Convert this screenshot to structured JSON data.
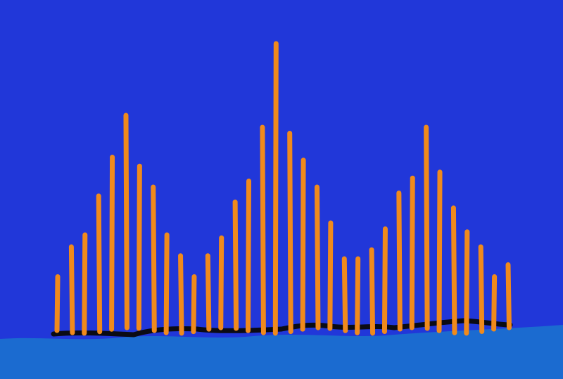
{
  "colors": {
    "sky": "#2137d9",
    "ground": "#1b6bd0",
    "baseline": "#0b0b14",
    "bar": "#f08a1c",
    "glow": "#c8884e"
  },
  "bars": {
    "count": 34,
    "note_levels": [
      0.18,
      0.28,
      0.32,
      0.45,
      0.58,
      0.72,
      0.55,
      0.48,
      0.32,
      0.25,
      0.18,
      0.25,
      0.31,
      0.43,
      0.5,
      0.68,
      0.96,
      0.66,
      0.57,
      0.48,
      0.36,
      0.24,
      0.24,
      0.27,
      0.34,
      0.46,
      0.51,
      0.68,
      0.53,
      0.41,
      0.33,
      0.28,
      0.18,
      0.22
    ]
  }
}
